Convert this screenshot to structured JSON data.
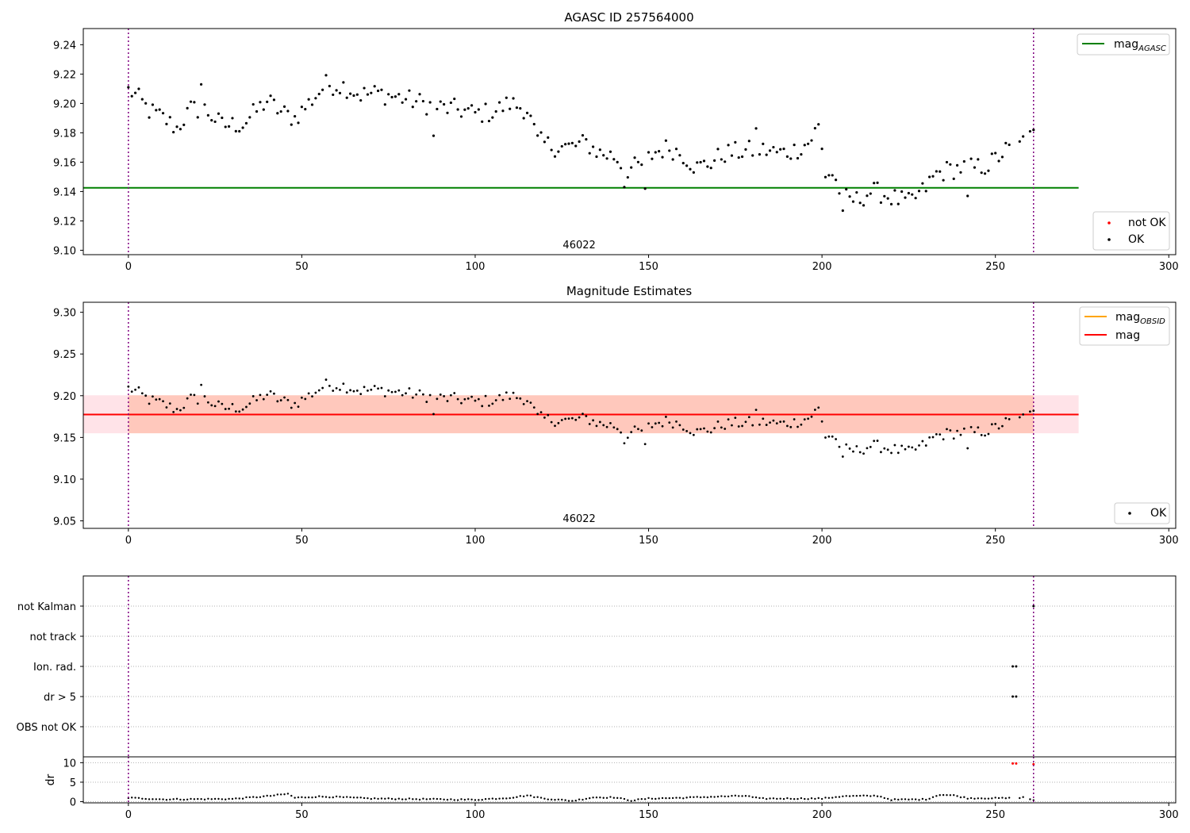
{
  "colors": {
    "agasc_line": "#008000",
    "obsid_line": "#ffa500",
    "mag_line": "#ff0000",
    "band_outer": "#ffc0cb",
    "band_inner": "#ffa07a",
    "ok_point": "#000000",
    "not_ok_point": "#ff0000",
    "obs_boundary": "#800080",
    "grid": "#b0b0b0"
  },
  "chart_data": [
    {
      "type": "scatter",
      "title": "AGASC ID 257564000",
      "xlim": [
        -13,
        302
      ],
      "ylim": [
        9.097,
        9.251
      ],
      "xticks": [
        "0",
        "50",
        "100",
        "150",
        "200",
        "250",
        "300"
      ],
      "xtick_values": [
        0,
        50,
        100,
        150,
        200,
        250,
        300
      ],
      "yticks": [
        "9.10",
        "9.12",
        "9.14",
        "9.16",
        "9.18",
        "9.20",
        "9.22",
        "9.24"
      ],
      "ytick_values": [
        9.1,
        9.12,
        9.14,
        9.16,
        9.18,
        9.2,
        9.22,
        9.24
      ],
      "hline": {
        "label": "mag",
        "label_sub": "AGASC",
        "y": 9.1425,
        "x_range": [
          -13,
          274
        ]
      },
      "obs_boundaries": [
        0,
        261
      ],
      "obsid_label": {
        "text": "46022",
        "x": 130
      },
      "legend_upper": [
        {
          "label": "mag",
          "sub": "AGASC",
          "marker": "line",
          "color": "#008000"
        }
      ],
      "legend_lower": [
        {
          "label": "not OK",
          "marker": "dot",
          "color": "#ff0000"
        },
        {
          "label": "OK",
          "marker": "dot",
          "color": "#000000"
        }
      ]
    },
    {
      "type": "scatter",
      "title": "Magnitude Estimates",
      "xlim": [
        -13,
        302
      ],
      "ylim": [
        9.041,
        9.312
      ],
      "xticks": [
        "0",
        "50",
        "100",
        "150",
        "200",
        "250",
        "300"
      ],
      "xtick_values": [
        0,
        50,
        100,
        150,
        200,
        250,
        300
      ],
      "yticks": [
        "9.05",
        "9.10",
        "9.15",
        "9.20",
        "9.25",
        "9.30"
      ],
      "ytick_values": [
        9.05,
        9.1,
        9.15,
        9.2,
        9.25,
        9.3
      ],
      "mag_line": {
        "y": 9.1775,
        "x_range": [
          -13,
          274
        ]
      },
      "band_outer": {
        "y_range": [
          9.155,
          9.2005
        ],
        "x_range": [
          -13,
          274
        ]
      },
      "band_inner": {
        "y_range": [
          9.155,
          9.2005
        ],
        "x_range": [
          0,
          261
        ]
      },
      "obs_boundaries": [
        0,
        261
      ],
      "obsid_label": {
        "text": "46022",
        "x": 130
      },
      "legend_upper": [
        {
          "label": "mag",
          "sub": "OBSID",
          "marker": "line",
          "color": "#ffa500"
        },
        {
          "label": "mag",
          "sub": "",
          "marker": "line",
          "color": "#ff0000"
        }
      ],
      "legend_lower": [
        {
          "label": "OK",
          "marker": "dot",
          "color": "#000000"
        }
      ]
    },
    {
      "type": "scatter",
      "title": "",
      "xlim": [
        -13,
        302
      ],
      "categories": [
        "not Kalman",
        "not track",
        "Ion. rad.",
        "dr > 5",
        "OBS not OK"
      ],
      "flag_points": {
        "not Kalman": [
          261
        ],
        "not track": [],
        "Ion. rad.": [
          255,
          256
        ],
        "dr > 5": [
          255,
          256
        ],
        "OBS not OK": []
      },
      "obs_boundaries": [
        0,
        261
      ]
    },
    {
      "type": "scatter",
      "title": "",
      "ylabel": "dr",
      "xlim": [
        -13,
        302
      ],
      "ylim": [
        -0.3,
        11.5
      ],
      "xticks": [
        "0",
        "50",
        "100",
        "150",
        "200",
        "250",
        "300"
      ],
      "xtick_values": [
        0,
        50,
        100,
        150,
        200,
        250,
        300
      ],
      "yticks": [
        "0",
        "5",
        "10"
      ],
      "ytick_values": [
        0,
        5,
        10
      ],
      "not_ok_points": [
        {
          "x": 255,
          "y": 9.8
        },
        {
          "x": 256,
          "y": 9.8
        },
        {
          "x": 261,
          "y": 9.6
        }
      ],
      "obs_boundaries": [
        0,
        261
      ]
    }
  ]
}
